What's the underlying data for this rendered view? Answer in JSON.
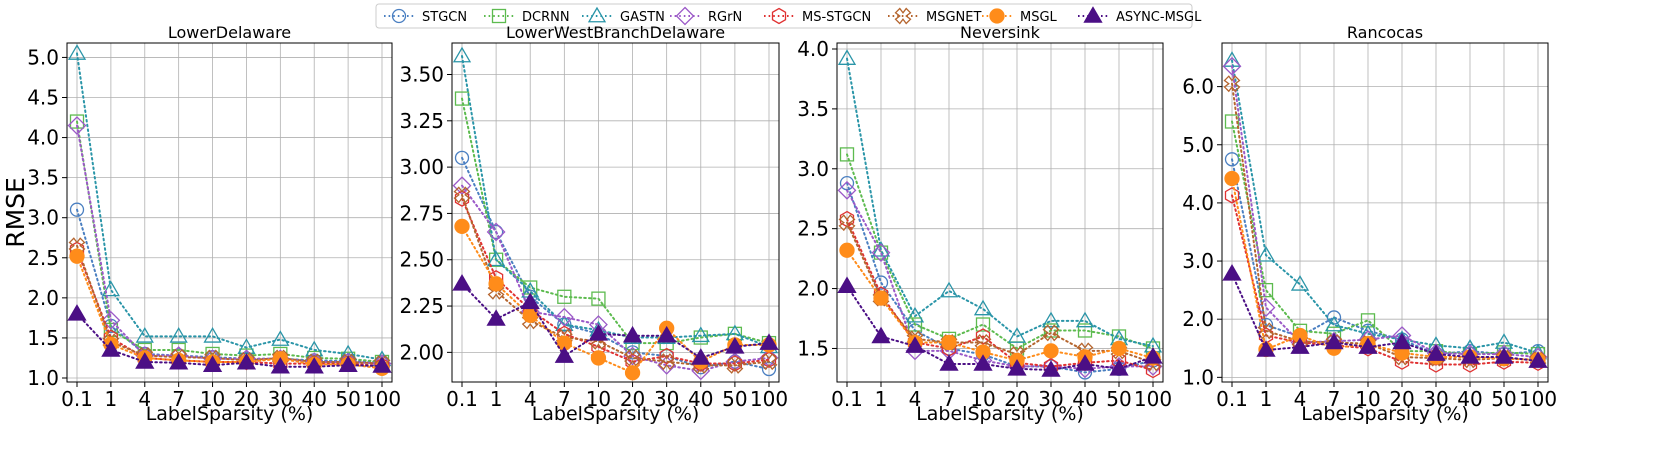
{
  "legend": [
    {
      "name": "STGCN",
      "color": "#4a7fc1",
      "marker": "circle",
      "filled": false
    },
    {
      "name": "DCRNN",
      "color": "#5dbb4f",
      "marker": "square",
      "filled": false
    },
    {
      "name": "GASTN",
      "color": "#2a95a8",
      "marker": "triangle",
      "filled": false
    },
    {
      "name": "RGrN",
      "color": "#9b59c8",
      "marker": "diamond",
      "filled": false
    },
    {
      "name": "MS-STGCN",
      "color": "#e03232",
      "marker": "hexagon",
      "filled": false
    },
    {
      "name": "MSGNET",
      "color": "#b5652e",
      "marker": "x",
      "filled": false
    },
    {
      "name": "MSGL",
      "color": "#ff8c1a",
      "marker": "circle",
      "filled": true
    },
    {
      "name": "ASYNC-MSGL",
      "color": "#4b0f85",
      "marker": "triangle",
      "filled": true
    }
  ],
  "chart_data": [
    {
      "type": "line",
      "title": "LowerDelaware",
      "xlabel": "LabelSparsity (%)",
      "ylabel": "RMSE",
      "categories": [
        "0.1",
        "1",
        "4",
        "7",
        "10",
        "20",
        "30",
        "40",
        "50",
        "100"
      ],
      "ylim": [
        0.95,
        5.18
      ],
      "yticks": [
        1.0,
        1.5,
        2.0,
        2.5,
        3.0,
        3.5,
        4.0,
        4.5,
        5.0
      ],
      "ytick_labels": [
        "1.0",
        "1.5",
        "2.0",
        "2.5",
        "3.0",
        "3.5",
        "4.0",
        "4.5",
        "5.0"
      ],
      "grid": true,
      "series": [
        {
          "name": "STGCN",
          "values": [
            3.1,
            1.65,
            1.3,
            1.28,
            1.26,
            1.24,
            1.24,
            1.22,
            1.21,
            1.2
          ]
        },
        {
          "name": "DCRNN",
          "values": [
            4.2,
            1.6,
            1.35,
            1.35,
            1.3,
            1.28,
            1.3,
            1.25,
            1.24,
            1.2
          ]
        },
        {
          "name": "GASTN",
          "values": [
            5.05,
            2.1,
            1.52,
            1.52,
            1.52,
            1.38,
            1.48,
            1.35,
            1.3,
            1.23
          ]
        },
        {
          "name": "RGrN",
          "values": [
            4.15,
            1.72,
            1.28,
            1.28,
            1.24,
            1.24,
            1.24,
            1.2,
            1.2,
            1.18
          ]
        },
        {
          "name": "MS-STGCN",
          "values": [
            2.6,
            1.5,
            1.25,
            1.22,
            1.2,
            1.2,
            1.18,
            1.18,
            1.18,
            1.15
          ]
        },
        {
          "name": "MSGNET",
          "values": [
            2.65,
            1.45,
            1.28,
            1.26,
            1.25,
            1.22,
            1.25,
            1.2,
            1.2,
            1.18
          ]
        },
        {
          "name": "MSGL",
          "values": [
            2.52,
            1.42,
            1.25,
            1.22,
            1.2,
            1.2,
            1.24,
            1.17,
            1.17,
            1.12
          ]
        },
        {
          "name": "ASYNC-MSGL",
          "values": [
            1.8,
            1.35,
            1.2,
            1.19,
            1.16,
            1.19,
            1.14,
            1.14,
            1.16,
            1.15
          ]
        }
      ]
    },
    {
      "type": "line",
      "title": "LowerWestBranchDelaware",
      "xlabel": "LabelSparsity (%)",
      "ylabel": "",
      "categories": [
        "0.1",
        "1",
        "4",
        "7",
        "10",
        "20",
        "30",
        "40",
        "50",
        "100"
      ],
      "ylim": [
        1.84,
        3.67
      ],
      "yticks": [
        2.0,
        2.25,
        2.5,
        2.75,
        3.0,
        3.25,
        3.5
      ],
      "ytick_labels": [
        "2.00",
        "2.25",
        "2.50",
        "2.75",
        "3.00",
        "3.25",
        "3.50"
      ],
      "grid": true,
      "series": [
        {
          "name": "STGCN",
          "values": [
            3.05,
            2.65,
            2.3,
            2.15,
            2.1,
            2.0,
            1.98,
            1.92,
            1.95,
            1.91
          ]
        },
        {
          "name": "DCRNN",
          "values": [
            3.37,
            2.5,
            2.35,
            2.3,
            2.29,
            2.05,
            2.05,
            2.08,
            2.1,
            2.05
          ]
        },
        {
          "name": "GASTN",
          "values": [
            3.6,
            2.5,
            2.33,
            2.15,
            2.12,
            2.08,
            2.08,
            2.09,
            2.1,
            2.03
          ]
        },
        {
          "name": "RGrN",
          "values": [
            2.9,
            2.65,
            2.22,
            2.19,
            2.15,
            1.98,
            1.93,
            1.9,
            1.95,
            1.97
          ]
        },
        {
          "name": "MS-STGCN",
          "values": [
            2.83,
            2.4,
            2.23,
            2.1,
            2.03,
            1.95,
            1.98,
            1.94,
            1.94,
            1.96
          ]
        },
        {
          "name": "MSGNET",
          "values": [
            2.85,
            2.33,
            2.17,
            2.08,
            2.06,
            1.97,
            1.95,
            1.93,
            1.93,
            1.95
          ]
        },
        {
          "name": "MSGL",
          "values": [
            2.68,
            2.37,
            2.2,
            2.05,
            1.97,
            1.89,
            2.13,
            1.95,
            2.04,
            2.04
          ]
        },
        {
          "name": "ASYNC-MSGL",
          "values": [
            2.37,
            2.18,
            2.27,
            1.98,
            2.1,
            2.09,
            2.09,
            1.97,
            2.03,
            2.05
          ]
        }
      ]
    },
    {
      "type": "line",
      "title": "Neversink",
      "xlabel": "LabelSparsity (%)",
      "ylabel": "",
      "categories": [
        "0.1",
        "1",
        "4",
        "7",
        "10",
        "20",
        "30",
        "40",
        "50",
        "100"
      ],
      "ylim": [
        1.22,
        4.05
      ],
      "yticks": [
        1.5,
        2.0,
        2.5,
        3.0,
        3.5,
        4.0
      ],
      "ytick_labels": [
        "1.5",
        "2.0",
        "2.5",
        "3.0",
        "3.5",
        "4.0"
      ],
      "grid": true,
      "series": [
        {
          "name": "STGCN",
          "values": [
            2.88,
            2.05,
            1.65,
            1.5,
            1.45,
            1.35,
            1.35,
            1.3,
            1.33,
            1.4
          ]
        },
        {
          "name": "DCRNN",
          "values": [
            3.12,
            2.3,
            1.7,
            1.58,
            1.7,
            1.5,
            1.65,
            1.65,
            1.6,
            1.5
          ]
        },
        {
          "name": "GASTN",
          "values": [
            3.92,
            2.32,
            1.77,
            1.98,
            1.83,
            1.6,
            1.73,
            1.73,
            1.58,
            1.52
          ]
        },
        {
          "name": "RGrN",
          "values": [
            2.82,
            2.3,
            1.48,
            1.48,
            1.4,
            1.35,
            1.35,
            1.33,
            1.35,
            1.35
          ]
        },
        {
          "name": "MS-STGCN",
          "values": [
            2.58,
            1.95,
            1.55,
            1.5,
            1.6,
            1.38,
            1.35,
            1.38,
            1.4,
            1.32
          ]
        },
        {
          "name": "MSGNET",
          "values": [
            2.55,
            1.92,
            1.58,
            1.55,
            1.55,
            1.45,
            1.63,
            1.48,
            1.48,
            1.38
          ]
        },
        {
          "name": "MSGL",
          "values": [
            2.32,
            1.92,
            1.55,
            1.55,
            1.47,
            1.4,
            1.48,
            1.43,
            1.5,
            1.42
          ]
        },
        {
          "name": "ASYNC-MSGL",
          "values": [
            2.02,
            1.6,
            1.52,
            1.37,
            1.37,
            1.33,
            1.32,
            1.37,
            1.33,
            1.43
          ]
        }
      ]
    },
    {
      "type": "line",
      "title": "Rancocas",
      "xlabel": "LabelSparsity (%)",
      "ylabel": "",
      "categories": [
        "0.1",
        "1",
        "4",
        "7",
        "10",
        "20",
        "30",
        "40",
        "50",
        "100"
      ],
      "ylim": [
        0.92,
        6.75
      ],
      "yticks": [
        1.0,
        2.0,
        3.0,
        4.0,
        5.0,
        6.0
      ],
      "ytick_labels": [
        "1.0",
        "2.0",
        "3.0",
        "4.0",
        "5.0",
        "6.0"
      ],
      "grid": true,
      "series": [
        {
          "name": "STGCN",
          "values": [
            4.75,
            1.9,
            1.7,
            2.03,
            1.8,
            1.65,
            1.4,
            1.45,
            1.4,
            1.45
          ]
        },
        {
          "name": "DCRNN",
          "values": [
            5.4,
            2.5,
            1.8,
            1.75,
            1.98,
            1.45,
            1.45,
            1.4,
            1.43,
            1.4
          ]
        },
        {
          "name": "GASTN",
          "values": [
            6.45,
            3.1,
            2.6,
            1.9,
            1.75,
            1.65,
            1.55,
            1.5,
            1.6,
            1.42
          ]
        },
        {
          "name": "RGrN",
          "values": [
            6.35,
            2.2,
            1.6,
            1.62,
            1.65,
            1.72,
            1.42,
            1.4,
            1.4,
            1.35
          ]
        },
        {
          "name": "MS-STGCN",
          "values": [
            4.13,
            1.72,
            1.6,
            1.55,
            1.5,
            1.27,
            1.22,
            1.22,
            1.27,
            1.25
          ]
        },
        {
          "name": "MSGNET",
          "values": [
            6.05,
            1.8,
            1.62,
            1.6,
            1.58,
            1.35,
            1.33,
            1.3,
            1.33,
            1.3
          ]
        },
        {
          "name": "MSGL",
          "values": [
            4.42,
            1.48,
            1.72,
            1.5,
            1.58,
            1.42,
            1.35,
            1.35,
            1.32,
            1.3
          ]
        },
        {
          "name": "ASYNC-MSGL",
          "values": [
            2.78,
            1.47,
            1.52,
            1.6,
            1.52,
            1.6,
            1.4,
            1.35,
            1.35,
            1.28
          ]
        }
      ]
    }
  ]
}
